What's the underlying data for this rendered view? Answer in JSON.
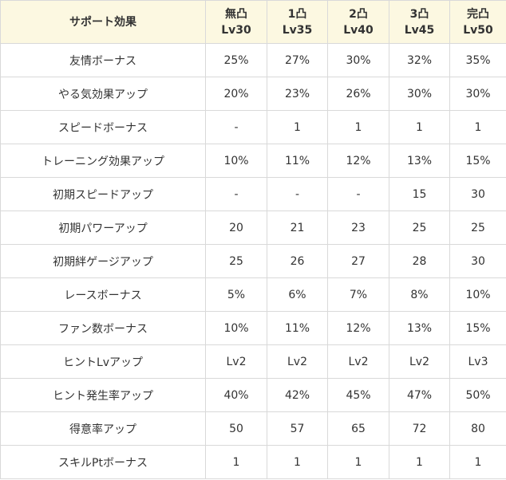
{
  "table": {
    "header": {
      "first": "サポート効果",
      "columns": [
        {
          "line1": "無凸",
          "line2": "Lv30"
        },
        {
          "line1": "1凸",
          "line2": "Lv35"
        },
        {
          "line1": "2凸",
          "line2": "Lv40"
        },
        {
          "line1": "3凸",
          "line2": "Lv45"
        },
        {
          "line1": "完凸",
          "line2": "Lv50"
        }
      ]
    },
    "rows": [
      {
        "label": "友情ボーナス",
        "values": [
          "25%",
          "27%",
          "30%",
          "32%",
          "35%"
        ]
      },
      {
        "label": "やる気効果アップ",
        "values": [
          "20%",
          "23%",
          "26%",
          "30%",
          "30%"
        ]
      },
      {
        "label": "スピードボーナス",
        "values": [
          "-",
          "1",
          "1",
          "1",
          "1"
        ]
      },
      {
        "label": "トレーニング効果アップ",
        "values": [
          "10%",
          "11%",
          "12%",
          "13%",
          "15%"
        ]
      },
      {
        "label": "初期スピードアップ",
        "values": [
          "-",
          "-",
          "-",
          "15",
          "30"
        ]
      },
      {
        "label": "初期パワーアップ",
        "values": [
          "20",
          "21",
          "23",
          "25",
          "25"
        ]
      },
      {
        "label": "初期絆ゲージアップ",
        "values": [
          "25",
          "26",
          "27",
          "28",
          "30"
        ]
      },
      {
        "label": "レースボーナス",
        "values": [
          "5%",
          "6%",
          "7%",
          "8%",
          "10%"
        ]
      },
      {
        "label": "ファン数ボーナス",
        "values": [
          "10%",
          "11%",
          "12%",
          "13%",
          "15%"
        ]
      },
      {
        "label": "ヒントLvアップ",
        "values": [
          "Lv2",
          "Lv2",
          "Lv2",
          "Lv2",
          "Lv3"
        ]
      },
      {
        "label": "ヒント発生率アップ",
        "values": [
          "40%",
          "42%",
          "45%",
          "47%",
          "50%"
        ]
      },
      {
        "label": "得意率アップ",
        "values": [
          "50",
          "57",
          "65",
          "72",
          "80"
        ]
      },
      {
        "label": "スキルPtボーナス",
        "values": [
          "1",
          "1",
          "1",
          "1",
          "1"
        ]
      }
    ]
  }
}
